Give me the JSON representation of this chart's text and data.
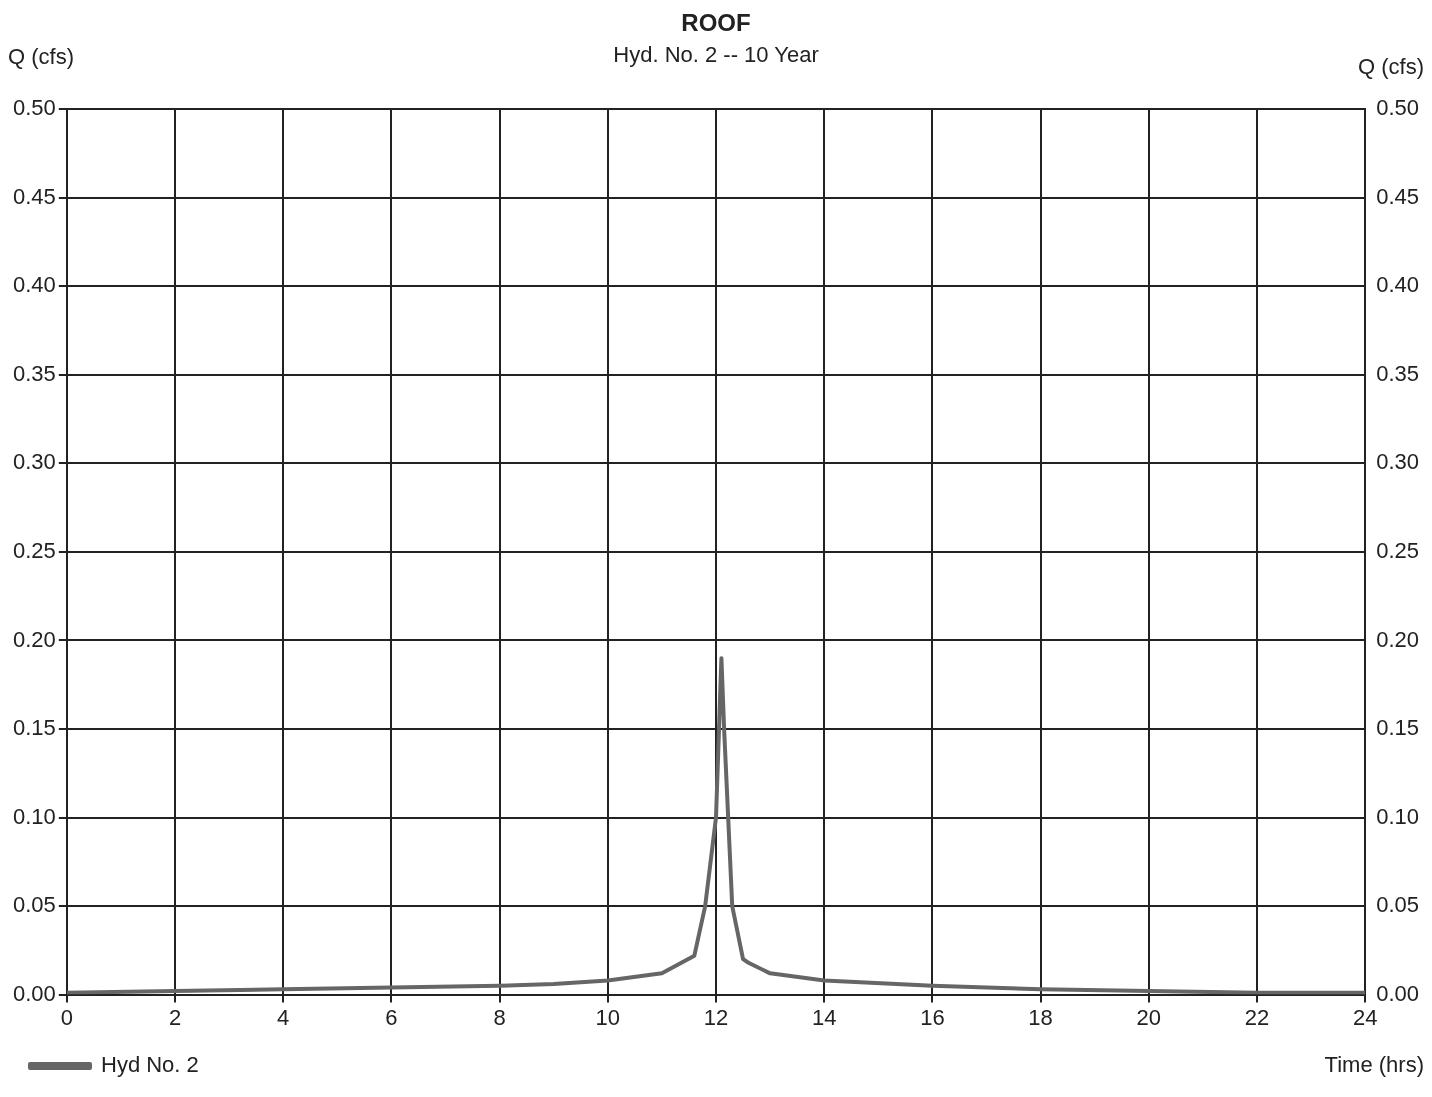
{
  "chart_data": {
    "type": "line",
    "title": "ROOF",
    "subtitle": "Hyd. No. 2 -- 10 Year",
    "xlabel": "Time (hrs)",
    "ylabel": "Q (cfs)",
    "y2label": "Q (cfs)",
    "x": [
      0,
      2,
      4,
      6,
      8,
      9,
      10,
      11,
      11.6,
      11.8,
      12.0,
      12.1,
      12.15,
      12.3,
      12.5,
      12.6,
      13,
      14,
      16,
      18,
      20,
      22,
      24
    ],
    "series": [
      {
        "name": "Hyd No. 2",
        "color": "#666666",
        "values": [
          0.001,
          0.002,
          0.003,
          0.004,
          0.005,
          0.006,
          0.008,
          0.012,
          0.022,
          0.05,
          0.1,
          0.19,
          0.15,
          0.05,
          0.02,
          0.018,
          0.012,
          0.008,
          0.005,
          0.003,
          0.002,
          0.001,
          0.001
        ]
      }
    ],
    "xlim": [
      0,
      24
    ],
    "xticks": [
      0,
      2,
      4,
      6,
      8,
      10,
      12,
      14,
      16,
      18,
      20,
      22,
      24
    ],
    "ylim": [
      0,
      0.5
    ],
    "yticks": [
      {
        "value": 0,
        "label": "0.00"
      },
      {
        "value": 0.05,
        "label": "0.05"
      },
      {
        "value": 0.1,
        "label": "0.10"
      },
      {
        "value": 0.15,
        "label": "0.15"
      },
      {
        "value": 0.2,
        "label": "0.20"
      },
      {
        "value": 0.25,
        "label": "0.25"
      },
      {
        "value": 0.3,
        "label": "0.30"
      },
      {
        "value": 0.35,
        "label": "0.35"
      },
      {
        "value": 0.4,
        "label": "0.40"
      },
      {
        "value": 0.45,
        "label": "0.45"
      },
      {
        "value": 0.5,
        "label": "0.50"
      }
    ],
    "y2lim": [
      0,
      0.5
    ],
    "y2ticks": [
      {
        "value": 0,
        "label": "0.00"
      },
      {
        "value": 0.05,
        "label": "0.05"
      },
      {
        "value": 0.1,
        "label": "0.10"
      },
      {
        "value": 0.15,
        "label": "0.15"
      },
      {
        "value": 0.2,
        "label": "0.20"
      },
      {
        "value": 0.25,
        "label": "0.25"
      },
      {
        "value": 0.3,
        "label": "0.30"
      },
      {
        "value": 0.35,
        "label": "0.35"
      },
      {
        "value": 0.4,
        "label": "0.40"
      },
      {
        "value": 0.45,
        "label": "0.45"
      },
      {
        "value": 0.5,
        "label": "0.50"
      }
    ],
    "grid": true,
    "legend": "bottom left",
    "marker": "none",
    "line_style": "solid"
  }
}
